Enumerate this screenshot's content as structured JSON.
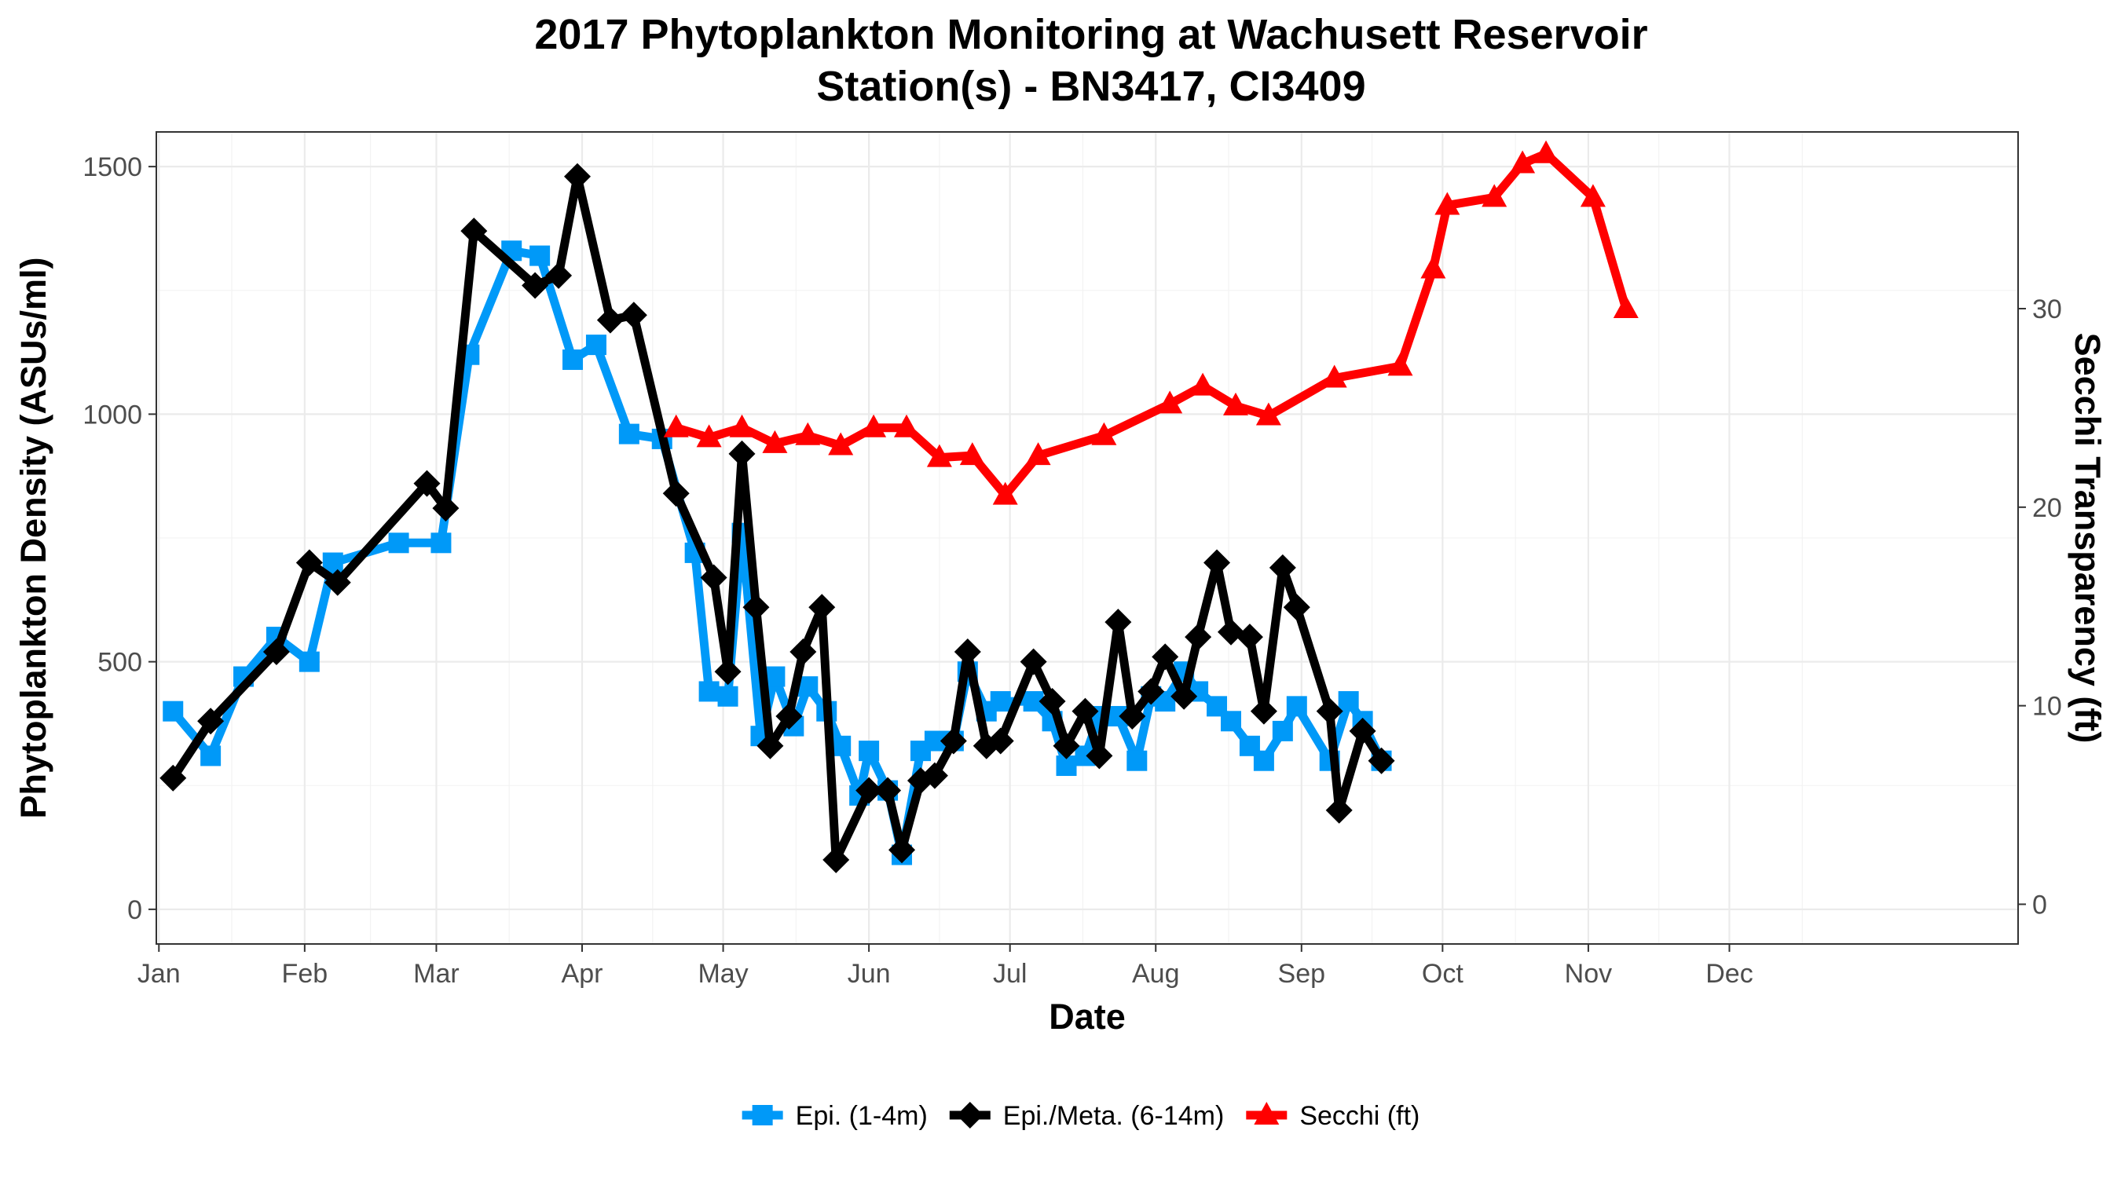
{
  "chart_data": {
    "type": "line",
    "title": "2017 Phytoplankton Monitoring at Wachusett Reservoir",
    "subtitle": "Station(s) - BN3417, CI3409",
    "xlabel": "Date",
    "ylabel": "Phytoplankton Density (ASUs/ml)",
    "y2label": "Secchi Transparency (ft)",
    "x_ticks": [
      "Jan",
      "Feb",
      "Mar",
      "Apr",
      "May",
      "Jun",
      "Jul",
      "Aug",
      "Sep",
      "Oct",
      "Nov",
      "Dec"
    ],
    "x_range": [
      "2017-01-01",
      "2017-12-31"
    ],
    "ylim": [
      -70,
      1570
    ],
    "y_ticks": [
      0,
      500,
      1000,
      1500
    ],
    "y2lim": [
      -2,
      38.9
    ],
    "y2_ticks": [
      0,
      10,
      20,
      30
    ],
    "grid": true,
    "legend_position": "bottom",
    "series": [
      {
        "name": "Epi. (1-4m)",
        "axis": "left",
        "color": "#0099f8",
        "marker": "square",
        "points": [
          [
            "2017-01-04",
            400
          ],
          [
            "2017-01-12",
            310
          ],
          [
            "2017-01-19",
            470
          ],
          [
            "2017-01-26",
            550
          ],
          [
            "2017-02-02",
            500
          ],
          [
            "2017-02-07",
            700
          ],
          [
            "2017-02-21",
            740
          ],
          [
            "2017-03-02",
            740
          ],
          [
            "2017-03-08",
            1120
          ],
          [
            "2017-03-17",
            1330
          ],
          [
            "2017-03-23",
            1320
          ],
          [
            "2017-03-30",
            1110
          ],
          [
            "2017-04-04",
            1140
          ],
          [
            "2017-04-11",
            960
          ],
          [
            "2017-04-18",
            950
          ],
          [
            "2017-04-25",
            720
          ],
          [
            "2017-04-28",
            440
          ],
          [
            "2017-05-02",
            430
          ],
          [
            "2017-05-05",
            760
          ],
          [
            "2017-05-09",
            350
          ],
          [
            "2017-05-12",
            470
          ],
          [
            "2017-05-16",
            370
          ],
          [
            "2017-05-19",
            450
          ],
          [
            "2017-05-23",
            400
          ],
          [
            "2017-05-26",
            330
          ],
          [
            "2017-05-30",
            230
          ],
          [
            "2017-06-01",
            320
          ],
          [
            "2017-06-05",
            240
          ],
          [
            "2017-06-08",
            110
          ],
          [
            "2017-06-12",
            320
          ],
          [
            "2017-06-15",
            340
          ],
          [
            "2017-06-19",
            340
          ],
          [
            "2017-06-22",
            480
          ],
          [
            "2017-06-26",
            400
          ],
          [
            "2017-06-29",
            420
          ],
          [
            "2017-07-06",
            420
          ],
          [
            "2017-07-10",
            380
          ],
          [
            "2017-07-13",
            290
          ],
          [
            "2017-07-17",
            310
          ],
          [
            "2017-07-20",
            390
          ],
          [
            "2017-07-24",
            390
          ],
          [
            "2017-07-28",
            300
          ],
          [
            "2017-07-31",
            430
          ],
          [
            "2017-08-03",
            420
          ],
          [
            "2017-08-07",
            480
          ],
          [
            "2017-08-10",
            440
          ],
          [
            "2017-08-14",
            410
          ],
          [
            "2017-08-17",
            380
          ],
          [
            "2017-08-21",
            330
          ],
          [
            "2017-08-24",
            300
          ],
          [
            "2017-08-28",
            360
          ],
          [
            "2017-08-31",
            410
          ],
          [
            "2017-09-07",
            300
          ],
          [
            "2017-09-11",
            420
          ],
          [
            "2017-09-14",
            380
          ],
          [
            "2017-09-18",
            300
          ]
        ]
      },
      {
        "name": "Epi./Meta. (6-14m)",
        "axis": "left",
        "color": "#000000",
        "marker": "diamond",
        "points": [
          [
            "2017-01-04",
            265
          ],
          [
            "2017-01-12",
            380
          ],
          [
            "2017-01-26",
            520
          ],
          [
            "2017-02-02",
            700
          ],
          [
            "2017-02-08",
            660
          ],
          [
            "2017-02-27",
            860
          ],
          [
            "2017-03-03",
            810
          ],
          [
            "2017-03-09",
            1370
          ],
          [
            "2017-03-22",
            1260
          ],
          [
            "2017-03-27",
            1280
          ],
          [
            "2017-03-31",
            1480
          ],
          [
            "2017-04-07",
            1190
          ],
          [
            "2017-04-12",
            1200
          ],
          [
            "2017-04-21",
            840
          ],
          [
            "2017-04-29",
            670
          ],
          [
            "2017-05-02",
            480
          ],
          [
            "2017-05-05",
            920
          ],
          [
            "2017-05-08",
            610
          ],
          [
            "2017-05-11",
            330
          ],
          [
            "2017-05-15",
            390
          ],
          [
            "2017-05-18",
            520
          ],
          [
            "2017-05-22",
            610
          ],
          [
            "2017-05-25",
            100
          ],
          [
            "2017-06-01",
            240
          ],
          [
            "2017-06-05",
            240
          ],
          [
            "2017-06-08",
            120
          ],
          [
            "2017-06-12",
            260
          ],
          [
            "2017-06-15",
            270
          ],
          [
            "2017-06-19",
            340
          ],
          [
            "2017-06-22",
            520
          ],
          [
            "2017-06-26",
            330
          ],
          [
            "2017-06-29",
            340
          ],
          [
            "2017-07-06",
            500
          ],
          [
            "2017-07-10",
            420
          ],
          [
            "2017-07-13",
            330
          ],
          [
            "2017-07-17",
            400
          ],
          [
            "2017-07-20",
            310
          ],
          [
            "2017-07-24",
            580
          ],
          [
            "2017-07-27",
            390
          ],
          [
            "2017-07-31",
            440
          ],
          [
            "2017-08-03",
            510
          ],
          [
            "2017-08-07",
            430
          ],
          [
            "2017-08-10",
            550
          ],
          [
            "2017-08-14",
            700
          ],
          [
            "2017-08-17",
            560
          ],
          [
            "2017-08-21",
            550
          ],
          [
            "2017-08-24",
            400
          ],
          [
            "2017-08-28",
            690
          ],
          [
            "2017-08-31",
            610
          ],
          [
            "2017-09-07",
            400
          ],
          [
            "2017-09-09",
            200
          ],
          [
            "2017-09-14",
            360
          ],
          [
            "2017-09-18",
            300
          ]
        ]
      },
      {
        "name": "Secchi (ft)",
        "axis": "right",
        "color": "#ff0000",
        "marker": "triangle",
        "points": [
          [
            "2017-04-21",
            24
          ],
          [
            "2017-04-28",
            23.5
          ],
          [
            "2017-05-05",
            24
          ],
          [
            "2017-05-12",
            23.2
          ],
          [
            "2017-05-19",
            23.6
          ],
          [
            "2017-05-26",
            23.1
          ],
          [
            "2017-06-02",
            24
          ],
          [
            "2017-06-09",
            24
          ],
          [
            "2017-06-16",
            22.5
          ],
          [
            "2017-06-23",
            22.6
          ],
          [
            "2017-06-30",
            20.6
          ],
          [
            "2017-07-07",
            22.6
          ],
          [
            "2017-07-21",
            23.6
          ],
          [
            "2017-08-04",
            25.2
          ],
          [
            "2017-08-11",
            26.1
          ],
          [
            "2017-08-18",
            25.1
          ],
          [
            "2017-08-25",
            24.6
          ],
          [
            "2017-09-08",
            26.5
          ],
          [
            "2017-09-22",
            27.1
          ],
          [
            "2017-09-29",
            32
          ],
          [
            "2017-10-02",
            35.2
          ],
          [
            "2017-10-12",
            35.6
          ],
          [
            "2017-10-18",
            37.3
          ],
          [
            "2017-10-23",
            37.8
          ],
          [
            "2017-11-02",
            35.6
          ],
          [
            "2017-11-09",
            30
          ]
        ]
      }
    ]
  }
}
